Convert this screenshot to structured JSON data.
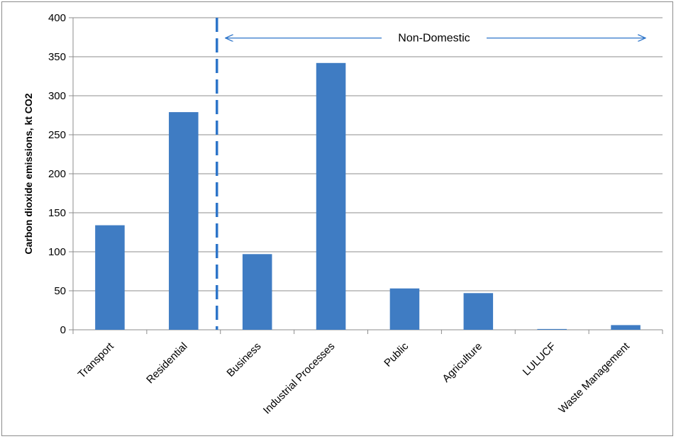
{
  "chart_data": {
    "type": "bar",
    "categories": [
      "Transport",
      "Residential",
      "Business",
      "Industrial Processes",
      "Public",
      "Agriculture",
      "LULUCF",
      "Waste Management"
    ],
    "values": [
      134,
      279,
      97,
      342,
      53,
      47,
      1,
      6
    ],
    "ylabel": "Carbon dioxide emissions, kt CO2",
    "xlabel": "",
    "title": "",
    "ylim": [
      0,
      400
    ],
    "yticks": [
      0,
      50,
      100,
      150,
      200,
      250,
      300,
      350,
      400
    ],
    "grid": true,
    "legend": "none",
    "bar_color": "#3f7cc3",
    "annotation": {
      "text": "Non-Domestic",
      "divider": "dashed vertical line between Residential and Business",
      "arrow": "double-headed arrow spanning Business through Waste Management",
      "color": "#2e75c9"
    }
  }
}
